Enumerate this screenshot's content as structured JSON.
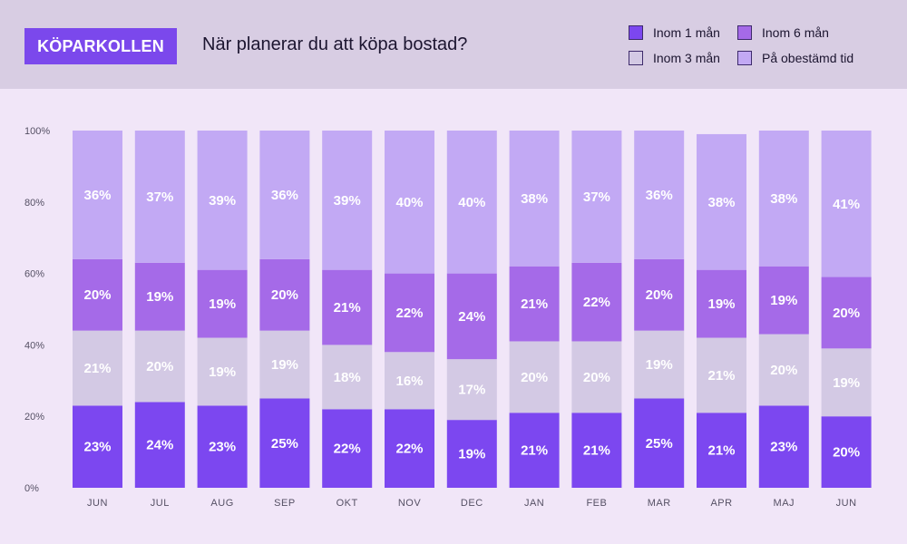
{
  "header": {
    "brand": "KÖPARKOLLEN",
    "title": "När planerar du att köpa bostad?"
  },
  "legend": [
    {
      "label": "Inom 1 mån",
      "color": "#7c47f0"
    },
    {
      "label": "Inom 6 mån",
      "color": "#a56ae8"
    },
    {
      "label": "Inom 3 mån",
      "color": "#d3c9e4"
    },
    {
      "label": "På obestämd tid",
      "color": "#c2a9f4"
    }
  ],
  "chart_data": {
    "type": "bar",
    "stacked": true,
    "title": "När planerar du att köpa bostad?",
    "categories": [
      "JUN",
      "JUL",
      "AUG",
      "SEP",
      "OKT",
      "NOV",
      "DEC",
      "JAN",
      "FEB",
      "MAR",
      "APR",
      "MAJ",
      "JUN"
    ],
    "yticks": [
      "0%",
      "20%",
      "40%",
      "60%",
      "80%",
      "100%"
    ],
    "ylim": [
      0,
      100
    ],
    "series": [
      {
        "name": "Inom 1 mån",
        "color": "#7c47f0",
        "label_color": "#ffffff",
        "values": [
          23,
          24,
          23,
          25,
          22,
          22,
          19,
          21,
          21,
          25,
          21,
          23,
          20
        ]
      },
      {
        "name": "Inom 3 mån",
        "color": "#d3c9e4",
        "label_color": "#ffffff",
        "values": [
          21,
          20,
          19,
          19,
          18,
          16,
          17,
          20,
          20,
          19,
          21,
          20,
          19
        ]
      },
      {
        "name": "Inom 6 mån",
        "color": "#a56ae8",
        "label_color": "#ffffff",
        "values": [
          20,
          19,
          19,
          20,
          21,
          22,
          24,
          21,
          22,
          20,
          19,
          19,
          20
        ]
      },
      {
        "name": "På obestämd tid",
        "color": "#c2a9f4",
        "label_color": "#ffffff",
        "values": [
          36,
          37,
          39,
          36,
          39,
          40,
          40,
          38,
          37,
          36,
          38,
          38,
          41
        ]
      }
    ]
  }
}
